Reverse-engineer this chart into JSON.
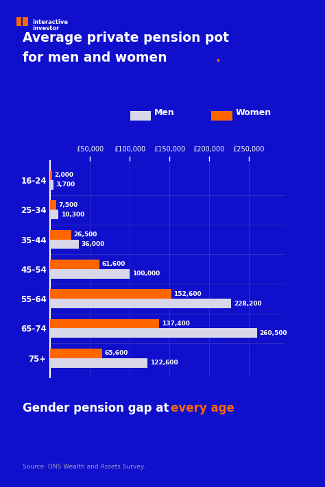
{
  "title_line1": "Average private pension pot",
  "title_line2_part1": "for men and women",
  "title_line2_part2": ".",
  "subtitle_part1": "Gender pension gap at ",
  "subtitle_part2": "every age",
  "source": "Source: ONS Wealth and Assets Survey.",
  "categories": [
    "16-24",
    "25-34",
    "35-44",
    "45-54",
    "55-64",
    "65-74",
    "75+"
  ],
  "men_values": [
    3700,
    10300,
    36000,
    100000,
    228200,
    260500,
    122600
  ],
  "women_values": [
    2000,
    7500,
    26500,
    61600,
    152600,
    137400,
    65600
  ],
  "men_labels": [
    "3,700",
    "10,300",
    "36,000",
    "100,000",
    "228,200",
    "260,500",
    "122,600"
  ],
  "women_labels": [
    "2,000",
    "7,500",
    "26,500",
    "61,600",
    "152,600",
    "137,400",
    "65,600"
  ],
  "bg_color": "#1010cc",
  "bar_color_men": "#d8d8e8",
  "bar_color_women": "#ff6600",
  "text_color": "#ffffff",
  "orange_color": "#ff6600",
  "xlim": [
    0,
    295000
  ],
  "xticks": [
    50000,
    100000,
    150000,
    200000,
    250000
  ],
  "xtick_labels": [
    "£50,000",
    "£100,000",
    "£150,000",
    "£200,000",
    "£250,000"
  ]
}
